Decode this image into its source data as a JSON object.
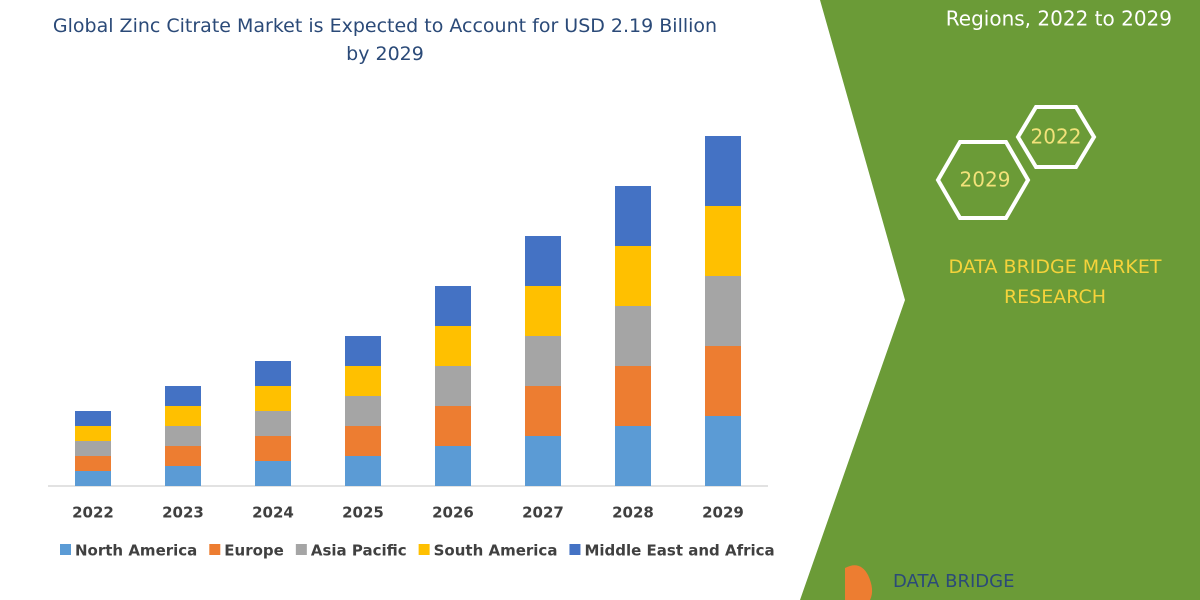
{
  "chart_data": {
    "type": "bar",
    "stacked": true,
    "title": "Global Zinc Citrate Market is Expected to Account for USD 2.19 Billion by 2029",
    "categories": [
      "2022",
      "2023",
      "2024",
      "2025",
      "2026",
      "2027",
      "2028",
      "2029"
    ],
    "series": [
      {
        "name": "North America",
        "color": "#5b9bd5",
        "values": [
          15,
          20,
          25,
          30,
          40,
          50,
          60,
          70
        ]
      },
      {
        "name": "Europe",
        "color": "#ed7d31",
        "values": [
          15,
          20,
          25,
          30,
          40,
          50,
          60,
          70
        ]
      },
      {
        "name": "Asia Pacific",
        "color": "#a5a5a5",
        "values": [
          15,
          20,
          25,
          30,
          40,
          50,
          60,
          70
        ]
      },
      {
        "name": "South America",
        "color": "#ffc000",
        "values": [
          15,
          20,
          25,
          30,
          40,
          50,
          60,
          70
        ]
      },
      {
        "name": "Middle East and Africa",
        "color": "#4472c4",
        "values": [
          15,
          20,
          25,
          30,
          40,
          50,
          60,
          70
        ]
      }
    ],
    "ylim": [
      0,
      350
    ]
  },
  "side_panel": {
    "heading": "Regions, 2022 to 2029",
    "hexagons": [
      "2022",
      "2029"
    ],
    "brand": "DATA BRIDGE MARKET RESEARCH",
    "logo": "DATA BRIDGE"
  }
}
